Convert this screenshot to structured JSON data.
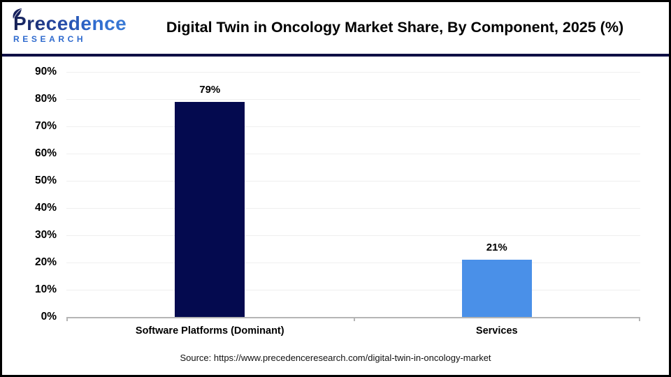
{
  "header": {
    "brand": {
      "name": "Precedence",
      "subname": "RESEARCH"
    },
    "title": "Digital Twin in Oncology Market Share, By Component, 2025 (%)"
  },
  "chart_data": {
    "type": "bar",
    "title": "Digital Twin in Oncology Market Share, By Component, 2025 (%)",
    "categories": [
      "Software Platforms (Dominant)",
      "Services"
    ],
    "values": [
      79,
      21
    ],
    "value_labels": [
      "79%",
      "21%"
    ],
    "bar_colors": [
      "#040A4F",
      "#4A90E8"
    ],
    "ylim": [
      0,
      90
    ],
    "ytick_step": 10,
    "ytick_labels": [
      "0%",
      "10%",
      "20%",
      "30%",
      "40%",
      "50%",
      "60%",
      "70%",
      "80%",
      "90%"
    ],
    "grid": true,
    "legend": false,
    "xlabel": "",
    "ylabel": ""
  },
  "footer": {
    "source": "Source: https://www.precedenceresearch.com/digital-twin-in-oncology-market"
  },
  "colors": {
    "bar_software_platforms": "#040A4F",
    "bar_services": "#4A90E8",
    "header_rule": "#0F1045",
    "brand_blue": "#2E6ACE",
    "brand_navy": "#151F52",
    "axis_line": "#B5B5B5",
    "gridline": "#EFEFEF"
  }
}
